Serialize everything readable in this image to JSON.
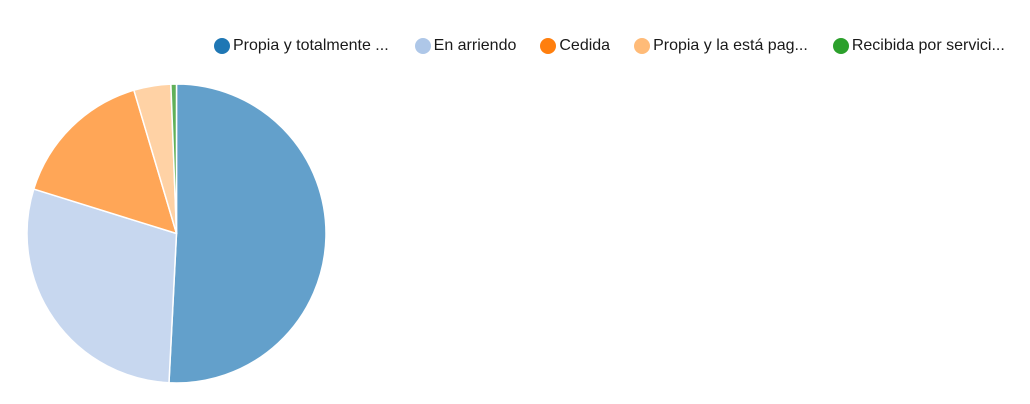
{
  "chart_data": {
    "type": "pie",
    "title": "",
    "legend_position": "top",
    "series": [
      {
        "categories": [
          "Propia y totalmente ...",
          "En arriendo",
          "Cedida",
          "Propia y la está pag...",
          "Recibida por servici..."
        ],
        "values": [
          50.8,
          29.0,
          15.6,
          4.0,
          0.6
        ],
        "colors": [
          "#63a0cb",
          "#c7d7ef",
          "#ffa657",
          "#ffd2a5",
          "#60b059"
        ],
        "legend_colors": [
          "#1f77b4",
          "#aec7e8",
          "#ff7f0e",
          "#ffbb78",
          "#2ca02c"
        ]
      }
    ]
  }
}
